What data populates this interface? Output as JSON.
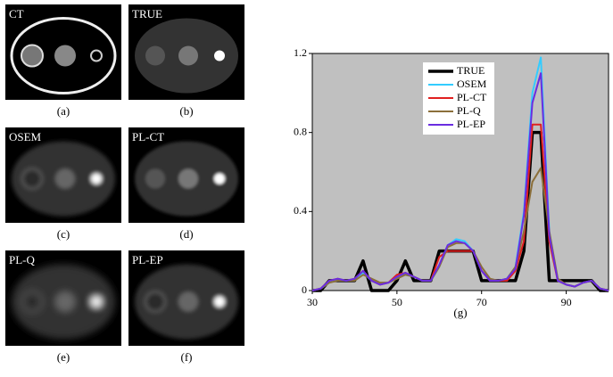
{
  "panels": [
    {
      "label": "CT",
      "caption": "(a)"
    },
    {
      "label": "TRUE",
      "caption": "(b)"
    },
    {
      "label": "OSEM",
      "caption": "(c)"
    },
    {
      "label": "PL-CT",
      "caption": "(d)"
    },
    {
      "label": "PL-Q",
      "caption": "(e)"
    },
    {
      "label": "PL-EP",
      "caption": "(f)"
    }
  ],
  "chart_data": {
    "type": "line",
    "caption": "(g)",
    "x": [
      30,
      32,
      34,
      36,
      38,
      40,
      42,
      44,
      46,
      48,
      50,
      52,
      54,
      56,
      58,
      60,
      62,
      64,
      66,
      68,
      70,
      72,
      74,
      76,
      78,
      80,
      82,
      84,
      86,
      88,
      90,
      92,
      94,
      96,
      98,
      100
    ],
    "series": [
      {
        "name": "TRUE",
        "color": "#000000",
        "values": [
          0,
          0,
          0.05,
          0.05,
          0.05,
          0.05,
          0.15,
          0,
          0,
          0,
          0.05,
          0.15,
          0.05,
          0.05,
          0.05,
          0.2,
          0.2,
          0.2,
          0.2,
          0.2,
          0.05,
          0.05,
          0.05,
          0.05,
          0.05,
          0.2,
          0.8,
          0.8,
          0.05,
          0.05,
          0.05,
          0.05,
          0.05,
          0.05,
          0,
          0
        ]
      },
      {
        "name": "OSEM",
        "color": "#33ccff",
        "values": [
          0,
          0.01,
          0.04,
          0.06,
          0.05,
          0.06,
          0.09,
          0.05,
          0.03,
          0.04,
          0.07,
          0.08,
          0.07,
          0.05,
          0.05,
          0.12,
          0.23,
          0.26,
          0.25,
          0.2,
          0.1,
          0.05,
          0.05,
          0.06,
          0.12,
          0.4,
          1.0,
          1.18,
          0.3,
          0.05,
          0.03,
          0.02,
          0.04,
          0.05,
          0.01,
          0
        ]
      },
      {
        "name": "PL-CT",
        "color": "#e02020",
        "values": [
          0,
          0.01,
          0.05,
          0.06,
          0.05,
          0.06,
          0.1,
          0.05,
          0.03,
          0.04,
          0.08,
          0.09,
          0.07,
          0.05,
          0.05,
          0.17,
          0.2,
          0.2,
          0.2,
          0.2,
          0.1,
          0.05,
          0.05,
          0.05,
          0.1,
          0.25,
          0.84,
          0.84,
          0.25,
          0.05,
          0.03,
          0.02,
          0.04,
          0.05,
          0.01,
          0
        ]
      },
      {
        "name": "PL-Q",
        "color": "#8b6f3a",
        "values": [
          0,
          0.01,
          0.04,
          0.05,
          0.05,
          0.05,
          0.08,
          0.06,
          0.04,
          0.04,
          0.06,
          0.08,
          0.07,
          0.05,
          0.05,
          0.12,
          0.22,
          0.24,
          0.24,
          0.2,
          0.12,
          0.06,
          0.05,
          0.06,
          0.12,
          0.3,
          0.55,
          0.62,
          0.3,
          0.06,
          0.03,
          0.02,
          0.04,
          0.05,
          0.01,
          0
        ]
      },
      {
        "name": "PL-EP",
        "color": "#6a2de0",
        "values": [
          0,
          0.01,
          0.05,
          0.06,
          0.05,
          0.06,
          0.1,
          0.05,
          0.03,
          0.04,
          0.07,
          0.09,
          0.07,
          0.05,
          0.05,
          0.13,
          0.23,
          0.25,
          0.24,
          0.2,
          0.1,
          0.05,
          0.05,
          0.06,
          0.11,
          0.38,
          0.95,
          1.1,
          0.28,
          0.05,
          0.03,
          0.02,
          0.04,
          0.05,
          0.01,
          0
        ]
      }
    ],
    "xlim": [
      30,
      100
    ],
    "xticks": [
      30,
      50,
      70,
      90
    ],
    "ylim": [
      0,
      1.2
    ],
    "yticks": [
      0,
      0.4,
      0.8,
      1.2
    ],
    "background": "#c0c0c0"
  }
}
